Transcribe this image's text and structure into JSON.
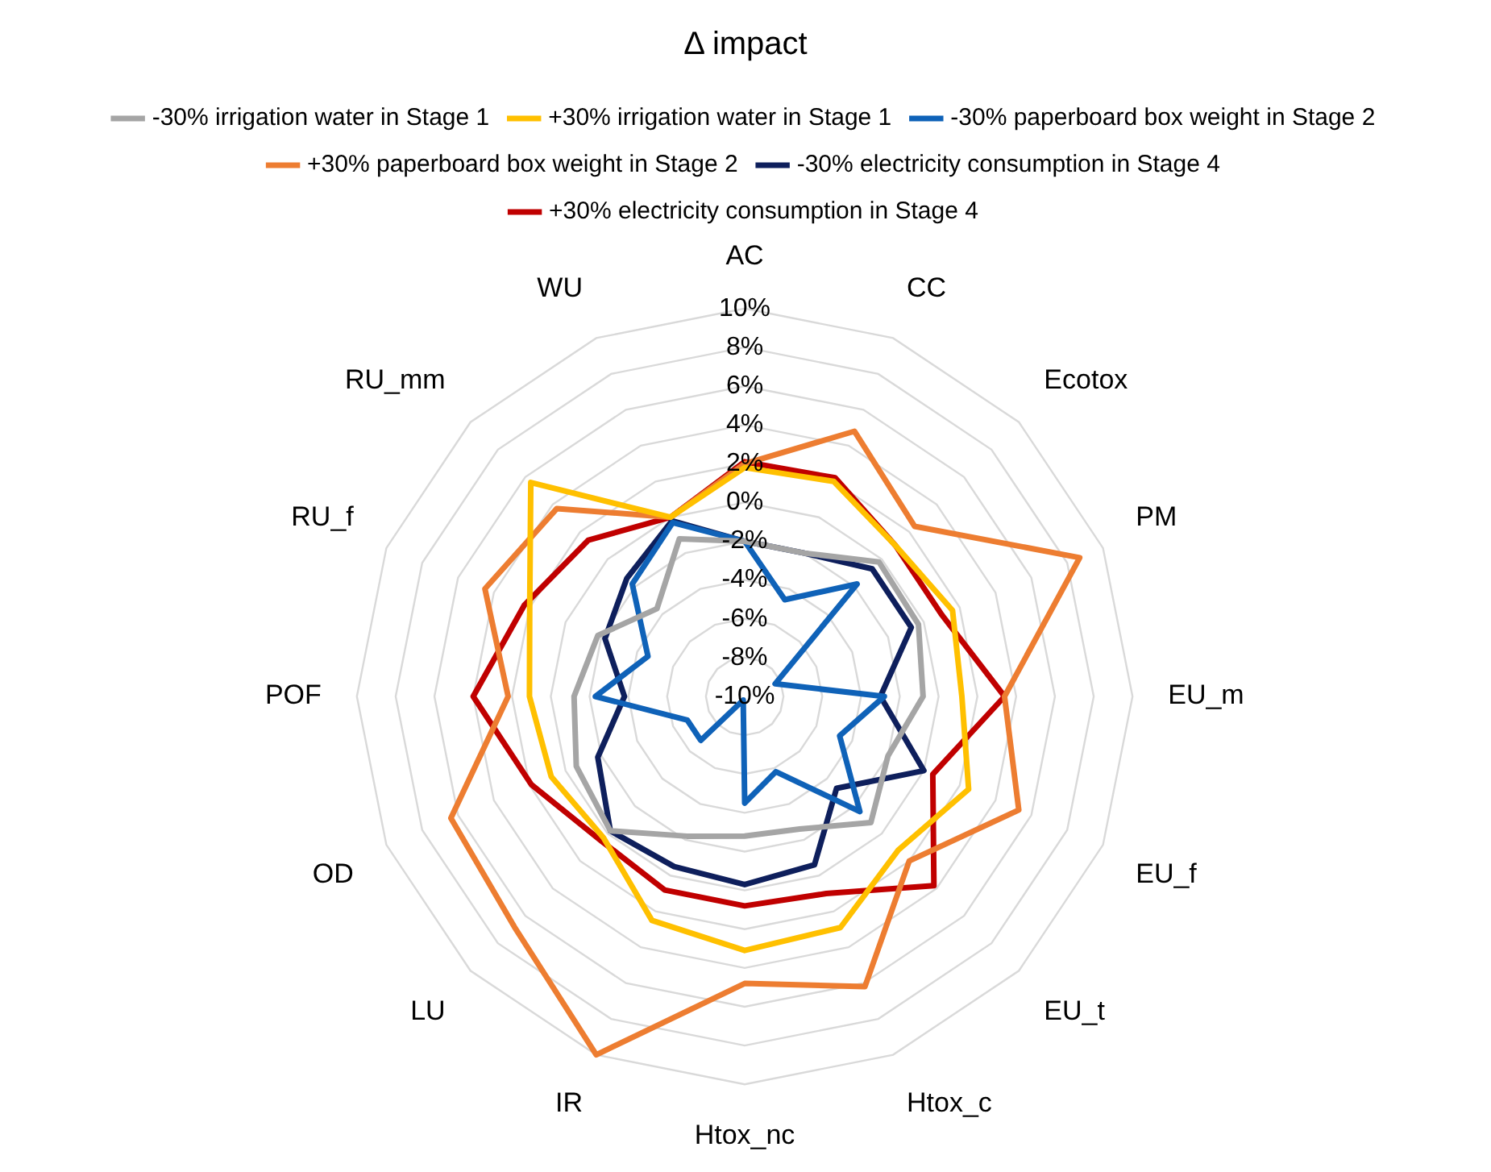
{
  "chart_data": {
    "type": "radar",
    "title": "Δ impact",
    "categories": [
      "AC",
      "CC",
      "Ecotox",
      "PM",
      "EU_m",
      "EU_f",
      "EU_t",
      "Htox_c",
      "Htox_nc",
      "IR",
      "LU",
      "OD",
      "POF",
      "RU_f",
      "RU_mm",
      "WU"
    ],
    "series": [
      {
        "name": "-30% irrigation water in Stage 1",
        "color": "#a5a5a5",
        "values": [
          -2,
          -2,
          -0.2,
          -0.3,
          -0.8,
          -2,
          -0.8,
          -2.6,
          -2.8,
          -2.2,
          -0.2,
          -0.6,
          -1.2,
          -1.8,
          -3.6,
          -1.2
        ]
      },
      {
        "name": "+30% irrigation water in Stage 1",
        "color": "#ffc000",
        "values": [
          1.8,
          2,
          1,
          1.6,
          1.2,
          2.5,
          1.2,
          2.9,
          3.1,
          2.5,
          0.3,
          0.8,
          1.1,
          2,
          5.6,
          0
        ]
      },
      {
        "name": "-30% paperboard box weight in Stage 2",
        "color": "#0f62b8",
        "values": [
          -2,
          -4.6,
          -1.8,
          -8.3,
          -2.8,
          -4.7,
          -1.6,
          -5.8,
          -4.5,
          -9.8,
          -6.8,
          -6.8,
          -2.3,
          -4.6,
          -1.8,
          -0.3
        ]
      },
      {
        "name": "+30% paperboard box weight in Stage 2",
        "color": "#ed7d31",
        "values": [
          2,
          4.8,
          2.4,
          8.7,
          3.4,
          5.3,
          2,
          6.2,
          4.8,
          10,
          6.8,
          6.4,
          2.2,
          4.5,
          3.7,
          0
        ]
      },
      {
        "name": "-30% electricity consumption in Stage 4",
        "color": "#0e1f5c",
        "values": [
          -2,
          -2,
          -0.7,
          -0.7,
          -3,
          0,
          -3.3,
          -0.6,
          -0.3,
          -0.5,
          -0.2,
          -1.8,
          -3.8,
          -2.2,
          -1.4,
          -0.2
        ]
      },
      {
        "name": "+30% electricity consumption in Stage 4",
        "color": "#c00000",
        "values": [
          2.1,
          2.2,
          1,
          1,
          3.4,
          0.5,
          3.8,
          1,
          0.8,
          0.8,
          0.5,
          1.9,
          4,
          2.3,
          1.4,
          0
        ]
      }
    ],
    "ylim": [
      -10,
      10
    ],
    "yticks": [
      {
        "value": -10,
        "label": "-10%"
      },
      {
        "value": -8,
        "label": "-8%"
      },
      {
        "value": -6,
        "label": "-6%"
      },
      {
        "value": -4,
        "label": "-4%"
      },
      {
        "value": -2,
        "label": "-2%"
      },
      {
        "value": 0,
        "label": "0%"
      },
      {
        "value": 2,
        "label": "2%"
      },
      {
        "value": 4,
        "label": "4%"
      },
      {
        "value": 6,
        "label": "6%"
      },
      {
        "value": 8,
        "label": "8%"
      },
      {
        "value": 10,
        "label": "10%"
      }
    ],
    "grid": true,
    "legend": "top",
    "marker": "none"
  }
}
